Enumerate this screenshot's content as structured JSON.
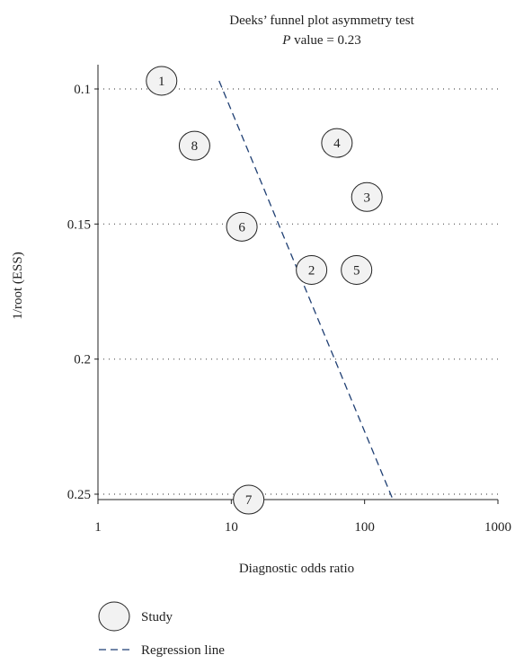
{
  "chart_data": {
    "type": "scatter",
    "title": "Deeks’ funnel plot asymmetry test",
    "subtitle_italic": "P",
    "subtitle_rest": " value = 0.23",
    "xlabel": "Diagnostic odds ratio",
    "ylabel": "1/root (ESS)",
    "x_scale": "log",
    "xlim": [
      1,
      1000
    ],
    "ylim": [
      0.1,
      0.25
    ],
    "y_inverted": true,
    "x_ticks": [
      "1",
      "10",
      "100",
      "1000"
    ],
    "y_ticks": [
      "0.1",
      "0.15",
      "0.2",
      "0.25"
    ],
    "grid": "horizontal dotted",
    "colors": {
      "regression": "#1f3f73",
      "marker_fill": "#f2f2f2",
      "marker_edge": "#222222"
    },
    "points": [
      {
        "label": "1",
        "x": 3.0,
        "y": 0.097
      },
      {
        "label": "2",
        "x": 40,
        "y": 0.167
      },
      {
        "label": "3",
        "x": 104,
        "y": 0.14
      },
      {
        "label": "4",
        "x": 62,
        "y": 0.12
      },
      {
        "label": "5",
        "x": 87,
        "y": 0.167
      },
      {
        "label": "6",
        "x": 12,
        "y": 0.151
      },
      {
        "label": "7",
        "x": 13.5,
        "y": 0.252
      },
      {
        "label": "8",
        "x": 5.3,
        "y": 0.121
      }
    ],
    "regression_line": {
      "x": [
        8.1,
        163
      ],
      "y": [
        0.097,
        0.252
      ]
    },
    "legend": {
      "position": "bottom-left",
      "study_label": "Study",
      "regression_label": "Regression line"
    }
  }
}
